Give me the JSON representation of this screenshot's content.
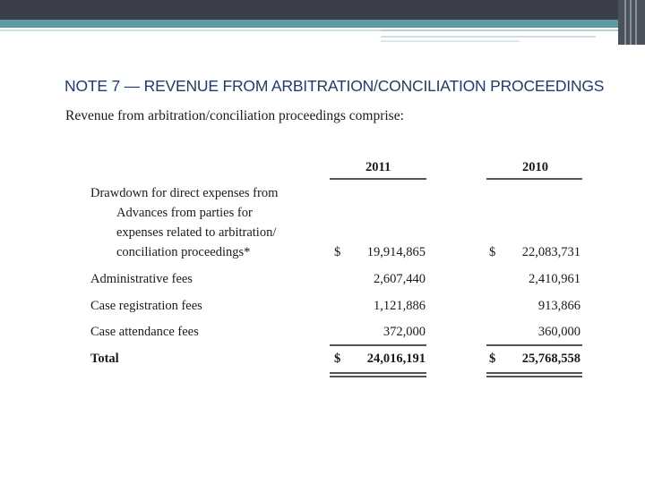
{
  "note": {
    "title": "NOTE 7 — REVENUE FROM ARBITRATION/CONCILIATION PROCEEDINGS",
    "intro": "Revenue from arbitration/conciliation proceedings comprise:"
  },
  "table": {
    "columns": [
      "2011",
      "2010"
    ],
    "rows": [
      {
        "label_lines": [
          "Drawdown for direct expenses from",
          "Advances from parties for",
          "expenses related to arbitration/",
          "conciliation proceedings*"
        ],
        "currency_2011": "$",
        "v2011": "19,914,865",
        "currency_2010": "$",
        "v2010": "22,083,731"
      },
      {
        "label": "Administrative fees",
        "v2011": "2,607,440",
        "v2010": "2,410,961"
      },
      {
        "label": "Case registration fees",
        "v2011": "1,121,886",
        "v2010": "913,866"
      },
      {
        "label": "Case attendance fees",
        "v2011": "372,000",
        "v2010": "360,000"
      },
      {
        "label": "Total",
        "currency_2011": "$",
        "v2011": "24,016,191",
        "currency_2010": "$",
        "v2010": "25,768,558"
      }
    ]
  }
}
